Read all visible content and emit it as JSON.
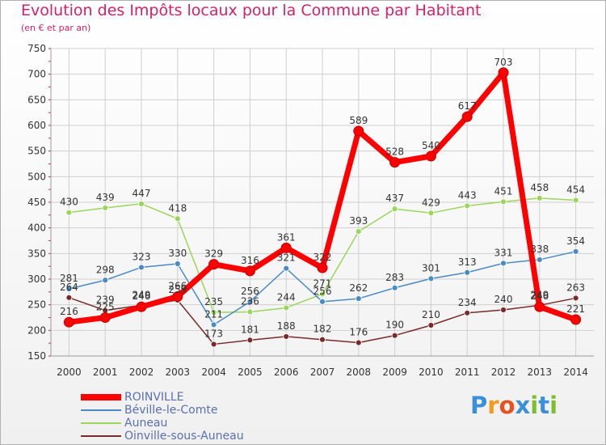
{
  "chart_data": {
    "type": "line",
    "title": "Evolution des Impôts locaux pour la Commune par Habitant",
    "subtitle": "(en € et par an)",
    "x": [
      "2000",
      "2001",
      "2002",
      "2003",
      "2004",
      "2005",
      "2006",
      "2007",
      "2008",
      "2009",
      "2010",
      "2011",
      "2012",
      "2013",
      "2014"
    ],
    "ylim": [
      150,
      750
    ],
    "yticks": [
      150,
      200,
      250,
      300,
      350,
      400,
      450,
      500,
      550,
      600,
      650,
      700,
      750
    ],
    "grid": true,
    "legend_position": "bottom-left",
    "series": [
      {
        "name": "ROINVILLE",
        "color": "#ff0000",
        "values": [
          216,
          225,
          246,
          266,
          329,
          316,
          361,
          322,
          589,
          528,
          540,
          617,
          703,
          246,
          221
        ]
      },
      {
        "name": "Béville-le-Comte",
        "color": "#4a8bc6",
        "values": [
          281,
          298,
          323,
          330,
          211,
          256,
          321,
          256,
          262,
          283,
          301,
          313,
          331,
          338,
          354
        ]
      },
      {
        "name": "Auneau",
        "color": "#99d65a",
        "values": [
          430,
          439,
          447,
          418,
          235,
          236,
          244,
          271,
          393,
          437,
          429,
          443,
          451,
          458,
          454
        ]
      },
      {
        "name": "Oinville-sous-Auneau",
        "color": "#7a2a2a",
        "values": [
          264,
          239,
          249,
          259,
          173,
          181,
          188,
          182,
          176,
          190,
          210,
          234,
          240,
          249,
          263
        ]
      }
    ]
  },
  "logo": {
    "text": "Proxiti",
    "letters": [
      "P",
      "r",
      "o",
      "x",
      "i",
      "t",
      "i"
    ],
    "colors": [
      "#3a8fd8",
      "#f29a1c",
      "#e8501e",
      "#3a8fd8",
      "#7cbf2a",
      "#3a8fd8",
      "#7cbf2a"
    ]
  }
}
